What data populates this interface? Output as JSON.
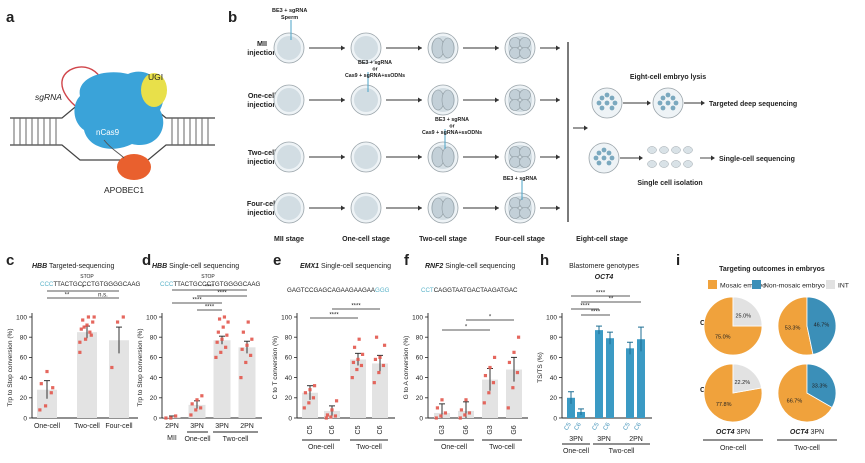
{
  "panels": {
    "a": "a",
    "b": "b",
    "c": "c",
    "d": "d",
    "e": "e",
    "f": "f",
    "h": "h",
    "i": "i"
  },
  "panel_a": {
    "ugi": "UGI",
    "sgrna": "sgRNA",
    "ncas9": "nCas9",
    "apobec1": "APOBEC1"
  },
  "panel_b": {
    "rows": [
      "MII injection",
      "One-cell injection",
      "Two-cell injection",
      "Four-cell injection"
    ],
    "row_lines": [
      [
        "MII",
        "injection"
      ],
      [
        "One-cell",
        "injection"
      ],
      [
        "Two-cell",
        "injection"
      ],
      [
        "Four-cell",
        "injection"
      ]
    ],
    "mii_note": [
      "BE3 + sgRNA",
      "Sperm"
    ],
    "onecell_note": [
      "BE3 + sgRNA",
      "or",
      "Cas9 + sgRNA+ssODNs"
    ],
    "twocell_note": [
      "BE3 + sgRNA",
      "or",
      "Cas9 + sgRNA+ssODNs"
    ],
    "fourcell_note": "BE3 + sgRNA",
    "stages": [
      "MII stage",
      "One-cell stage",
      "Two-cell stage",
      "Four-cell stage",
      "Eight-cell stage"
    ],
    "lysis": "Eight-cell embryo lysis",
    "deep_seq": "Targeted deep sequencing",
    "isolation": "Single cell isolation",
    "sc_seq": "Single-cell sequencing"
  },
  "panel_c": {
    "title_gene": "HBB",
    "title_rest": " Targeted-sequencing",
    "stop": "STOP",
    "seq": "TTACTGCCCTGTGGGGCAAG",
    "seq_prefix": "CCC",
    "ylabel": "Trp to Stop conversion (%)",
    "sig": [
      "**",
      "n.s.",
      "*"
    ]
  },
  "panel_d": {
    "title_gene": "HBB",
    "title_rest": " Single-cell sequencing",
    "stop": "STOP",
    "seq": "TTACTGCCCTGTGGGGCAAG",
    "seq_prefix": "CCC",
    "ylabel": "Trp to Stop conversion (%)",
    "sig": [
      "****",
      "****",
      "****",
      "****"
    ],
    "group_labels": [
      "MII",
      "One-cell",
      "Two-cell"
    ]
  },
  "panel_e": {
    "title_gene": "EMX1",
    "title_rest": " Single-cell sequencing",
    "seq": "GAGTCCGAGCAGAAGAAGAA",
    "seq_suffix": "GGG",
    "ylabel": "C to T conversion (%)",
    "sig": [
      "****",
      "****"
    ],
    "group_labels": [
      "One-cell",
      "Two-cell"
    ]
  },
  "panel_f": {
    "title_gene": "RNF2",
    "title_rest": " Single-cell sequencing",
    "seq_prefix": "CCT",
    "seq": "CAGGTAATGACTAAGATGAC",
    "ylabel": "G to A conversion (%)",
    "sig": [
      "*",
      "*"
    ],
    "group_labels": [
      "One-cell",
      "Two-cell"
    ]
  },
  "panel_h": {
    "title": "Blastomere genotypes",
    "subtitle": "OCT4",
    "ylabel": "TS/TS (%)",
    "sig": [
      "****",
      "**",
      "****",
      "****"
    ],
    "group_labels": [
      "One-cell",
      "Two-cell"
    ]
  },
  "panel_i": {
    "title": "Targeting outcomes in embryos",
    "legend": [
      "Mosaic embryo",
      "Non-mosaic embryo",
      "INT"
    ],
    "legend_colors": [
      "#f0a23c",
      "#3b8fb8",
      "#e2e2e2"
    ],
    "row_labels": [
      "C5",
      "C6"
    ],
    "col_label_gene": "OCT4",
    "col_label_rest": [
      "3PN",
      "3PN"
    ],
    "col_groups": [
      "One-cell",
      "Two-cell"
    ]
  },
  "chart_data": [
    {
      "panel": "c",
      "type": "bar",
      "categories": [
        "One-cell",
        "Two-cell",
        "Four-cell"
      ],
      "values": [
        28,
        85,
        77
      ],
      "errors": [
        9,
        6,
        13
      ],
      "points": [
        [
          8,
          12,
          25,
          34,
          46,
          30
        ],
        [
          65,
          78,
          82,
          88,
          92,
          95,
          97,
          100,
          100,
          90,
          85,
          75
        ],
        [
          50,
          95,
          100
        ]
      ],
      "ylim": [
        0,
        100
      ],
      "yticks": [
        0,
        20,
        40,
        60,
        80,
        100
      ],
      "ylabel": "Trp to Stop conversion (%)",
      "bar_color": "#e3e3e3",
      "point_color": "#e2574c"
    },
    {
      "panel": "d",
      "type": "bar",
      "categories": [
        "2PN",
        "3PN",
        "3PN",
        "2PN"
      ],
      "values": [
        1,
        13,
        77,
        70
      ],
      "errors": [
        1,
        4,
        4,
        6
      ],
      "points": [
        [
          0,
          0,
          2
        ],
        [
          3,
          8,
          10,
          14,
          18,
          22
        ],
        [
          60,
          65,
          70,
          75,
          78,
          82,
          85,
          90,
          95,
          98,
          100
        ],
        [
          40,
          55,
          62,
          68,
          72,
          78,
          85,
          95
        ]
      ],
      "ylim": [
        0,
        100
      ],
      "yticks": [
        0,
        20,
        40,
        60,
        80,
        100
      ],
      "ylabel": "Trp to Stop conversion (%)",
      "bar_color": "#e3e3e3",
      "point_color": "#e2574c"
    },
    {
      "panel": "e",
      "type": "bar",
      "categories": [
        "C5",
        "C6",
        "C5",
        "C6"
      ],
      "values": [
        25,
        7,
        58,
        54
      ],
      "errors": [
        7,
        5,
        6,
        8
      ],
      "points": [
        [
          10,
          15,
          20,
          25,
          28,
          32
        ],
        [
          0,
          1,
          2,
          3,
          8,
          17
        ],
        [
          40,
          48,
          52,
          55,
          58,
          63,
          70,
          78
        ],
        [
          35,
          45,
          52,
          58,
          60,
          72,
          80
        ]
      ],
      "ylim": [
        0,
        100
      ],
      "yticks": [
        0,
        20,
        40,
        60,
        80,
        100
      ],
      "ylabel": "C to T conversion (%)",
      "bar_color": "#e3e3e3",
      "point_color": "#e2574c"
    },
    {
      "panel": "f",
      "type": "bar",
      "categories": [
        "G3",
        "G6",
        "G3",
        "G6"
      ],
      "values": [
        5,
        7,
        38,
        48
      ],
      "errors": [
        9,
        9,
        11,
        12
      ],
      "points": [
        [
          0,
          2,
          5,
          10,
          18
        ],
        [
          0,
          3,
          5,
          8,
          18
        ],
        [
          15,
          25,
          35,
          42,
          50,
          60
        ],
        [
          10,
          30,
          45,
          55,
          65,
          80
        ]
      ],
      "ylim": [
        0,
        100
      ],
      "yticks": [
        0,
        20,
        40,
        60,
        80,
        100
      ],
      "ylabel": "G to A conversion (%)",
      "bar_color": "#e3e3e3",
      "point_color": "#e2574c"
    },
    {
      "panel": "h",
      "type": "bar",
      "categories": [
        "C5",
        "C6",
        "C5",
        "C6",
        "C5",
        "C6"
      ],
      "group_labels": [
        "3PN",
        "3PN",
        "2PN"
      ],
      "values": [
        20,
        6,
        87,
        79,
        69,
        78
      ],
      "errors": [
        6,
        3,
        4,
        6,
        6,
        12
      ],
      "ylim": [
        0,
        100
      ],
      "yticks": [
        0,
        20,
        40,
        60,
        80,
        100
      ],
      "ylabel": "TS/TS (%)",
      "bar_color": "#3b9ac4"
    },
    {
      "panel": "i",
      "type": "pie",
      "pies": [
        {
          "row": "C5",
          "col": "One-cell",
          "labels": [
            "Mosaic embryo",
            "Non-mosaic embryo",
            "INT"
          ],
          "values": [
            75.0,
            0,
            25.0
          ],
          "value_labels": [
            "75.0%",
            "",
            "25.0%"
          ]
        },
        {
          "row": "C5",
          "col": "Two-cell",
          "labels": [
            "Mosaic embryo",
            "Non-mosaic embryo",
            "INT"
          ],
          "values": [
            53.3,
            46.7,
            0
          ],
          "value_labels": [
            "53.3%",
            "46.7%",
            ""
          ]
        },
        {
          "row": "C6",
          "col": "One-cell",
          "labels": [
            "Mosaic embryo",
            "Non-mosaic embryo",
            "INT"
          ],
          "values": [
            77.8,
            0,
            22.2
          ],
          "value_labels": [
            "77.8%",
            "",
            "22.2%"
          ]
        },
        {
          "row": "C6",
          "col": "Two-cell",
          "labels": [
            "Mosaic embryo",
            "Non-mosaic embryo",
            "INT"
          ],
          "values": [
            66.7,
            33.3,
            0
          ],
          "value_labels": [
            "66.7%",
            "33.3%",
            ""
          ]
        }
      ]
    }
  ]
}
